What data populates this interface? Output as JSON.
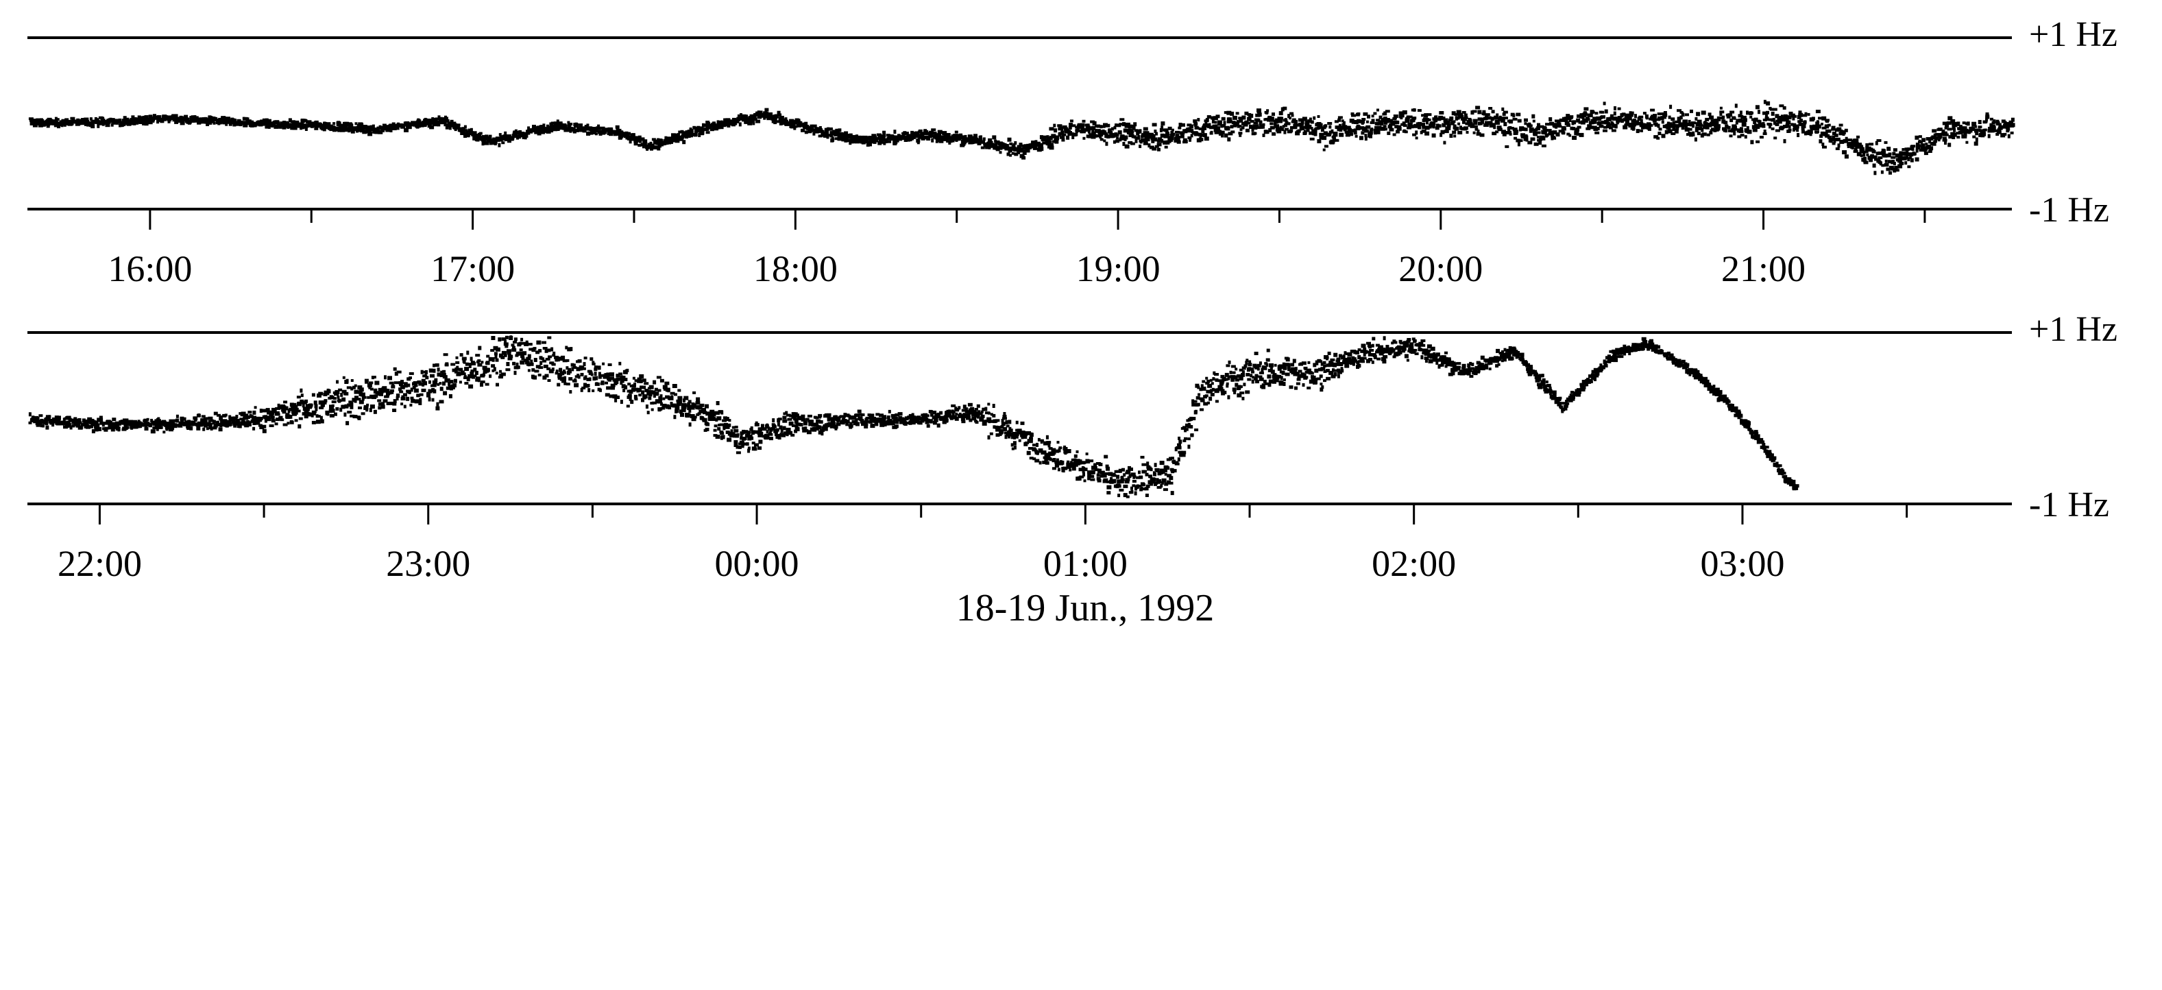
{
  "chart_data": [
    {
      "type": "scatter",
      "panel": "top",
      "y_labels": {
        "top": "+1 Hz",
        "bottom": "-1 Hz"
      },
      "ylim": [
        -1,
        1
      ],
      "xlim_hours": [
        15.62,
        21.77
      ],
      "xticks": [
        {
          "h": 16.0,
          "label": "16:00"
        },
        {
          "h": 16.5,
          "label": ""
        },
        {
          "h": 17.0,
          "label": "17:00"
        },
        {
          "h": 17.5,
          "label": ""
        },
        {
          "h": 18.0,
          "label": "18:00"
        },
        {
          "h": 18.5,
          "label": ""
        },
        {
          "h": 19.0,
          "label": "19:00"
        },
        {
          "h": 19.5,
          "label": ""
        },
        {
          "h": 20.0,
          "label": "20:00"
        },
        {
          "h": 20.5,
          "label": ""
        },
        {
          "h": 21.0,
          "label": "21:00"
        },
        {
          "h": 21.5,
          "label": ""
        }
      ],
      "trend": [
        [
          15.62,
          0.03
        ],
        [
          15.9,
          0.04
        ],
        [
          16.05,
          0.08
        ],
        [
          16.3,
          0.02
        ],
        [
          16.5,
          0.0
        ],
        [
          16.7,
          -0.05
        ],
        [
          16.9,
          0.05
        ],
        [
          17.05,
          -0.2
        ],
        [
          17.25,
          0.0
        ],
        [
          17.45,
          -0.1
        ],
        [
          17.55,
          -0.25
        ],
        [
          17.7,
          -0.05
        ],
        [
          17.9,
          0.12
        ],
        [
          18.05,
          -0.05
        ],
        [
          18.2,
          -0.18
        ],
        [
          18.4,
          -0.12
        ],
        [
          18.55,
          -0.18
        ],
        [
          18.7,
          -0.3
        ],
        [
          18.85,
          -0.05
        ],
        [
          19.0,
          -0.1
        ],
        [
          19.15,
          -0.15
        ],
        [
          19.3,
          0.0
        ],
        [
          19.5,
          0.05
        ],
        [
          19.65,
          -0.1
        ],
        [
          19.8,
          0.05
        ],
        [
          20.0,
          0.0
        ],
        [
          20.15,
          0.05
        ],
        [
          20.3,
          -0.1
        ],
        [
          20.45,
          0.05
        ],
        [
          20.6,
          0.05
        ],
        [
          20.8,
          0.0
        ],
        [
          21.0,
          0.05
        ],
        [
          21.15,
          0.0
        ],
        [
          21.3,
          -0.3
        ],
        [
          21.4,
          -0.45
        ],
        [
          21.55,
          -0.1
        ],
        [
          21.77,
          0.0
        ]
      ],
      "noise": [
        [
          15.62,
          0.04
        ],
        [
          18.5,
          0.06
        ],
        [
          19.2,
          0.14
        ],
        [
          20.2,
          0.16
        ],
        [
          20.7,
          0.14
        ],
        [
          21.0,
          0.2
        ],
        [
          21.3,
          0.14
        ],
        [
          21.77,
          0.12
        ]
      ]
    },
    {
      "type": "scatter",
      "panel": "bottom",
      "y_labels": {
        "top": "+1 Hz",
        "bottom": "-1 Hz"
      },
      "ylim": [
        -1,
        1
      ],
      "xlim_hours": [
        21.78,
        27.82
      ],
      "xticks": [
        {
          "h": 22.0,
          "label": "22:00"
        },
        {
          "h": 22.5,
          "label": ""
        },
        {
          "h": 23.0,
          "label": "23:00"
        },
        {
          "h": 23.5,
          "label": ""
        },
        {
          "h": 24.0,
          "label": "00:00"
        },
        {
          "h": 24.5,
          "label": ""
        },
        {
          "h": 25.0,
          "label": "01:00"
        },
        {
          "h": 25.5,
          "label": ""
        },
        {
          "h": 26.0,
          "label": "02:00"
        },
        {
          "h": 26.5,
          "label": ""
        },
        {
          "h": 27.0,
          "label": "03:00"
        },
        {
          "h": 27.5,
          "label": ""
        }
      ],
      "trend": [
        [
          21.78,
          0.0
        ],
        [
          22.0,
          -0.05
        ],
        [
          22.2,
          -0.05
        ],
        [
          22.45,
          0.0
        ],
        [
          22.65,
          0.15
        ],
        [
          22.8,
          0.3
        ],
        [
          22.95,
          0.35
        ],
        [
          23.1,
          0.55
        ],
        [
          23.25,
          0.8
        ],
        [
          23.45,
          0.55
        ],
        [
          23.65,
          0.35
        ],
        [
          23.85,
          0.05
        ],
        [
          23.95,
          -0.25
        ],
        [
          24.1,
          -0.05
        ],
        [
          24.3,
          0.0
        ],
        [
          24.5,
          0.0
        ],
        [
          24.65,
          0.1
        ],
        [
          24.8,
          -0.2
        ],
        [
          24.95,
          -0.5
        ],
        [
          25.1,
          -0.75
        ],
        [
          25.25,
          -0.65
        ],
        [
          25.35,
          0.3
        ],
        [
          25.5,
          0.55
        ],
        [
          25.7,
          0.55
        ],
        [
          25.85,
          0.78
        ],
        [
          26.0,
          0.85
        ],
        [
          26.15,
          0.55
        ],
        [
          26.3,
          0.8
        ],
        [
          26.45,
          0.15
        ],
        [
          26.6,
          0.75
        ],
        [
          26.7,
          0.9
        ],
        [
          26.85,
          0.55
        ],
        [
          26.95,
          0.2
        ],
        [
          27.05,
          -0.25
        ],
        [
          27.12,
          -0.65
        ],
        [
          27.16,
          -0.8
        ]
      ],
      "noise": [
        [
          21.78,
          0.06
        ],
        [
          22.4,
          0.08
        ],
        [
          22.6,
          0.22
        ],
        [
          23.3,
          0.26
        ],
        [
          23.9,
          0.16
        ],
        [
          24.5,
          0.06
        ],
        [
          24.7,
          0.16
        ],
        [
          25.1,
          0.18
        ],
        [
          25.4,
          0.22
        ],
        [
          26.0,
          0.1
        ],
        [
          26.5,
          0.05
        ],
        [
          27.16,
          0.05
        ]
      ]
    }
  ],
  "caption": "18-19 Jun., 1992"
}
